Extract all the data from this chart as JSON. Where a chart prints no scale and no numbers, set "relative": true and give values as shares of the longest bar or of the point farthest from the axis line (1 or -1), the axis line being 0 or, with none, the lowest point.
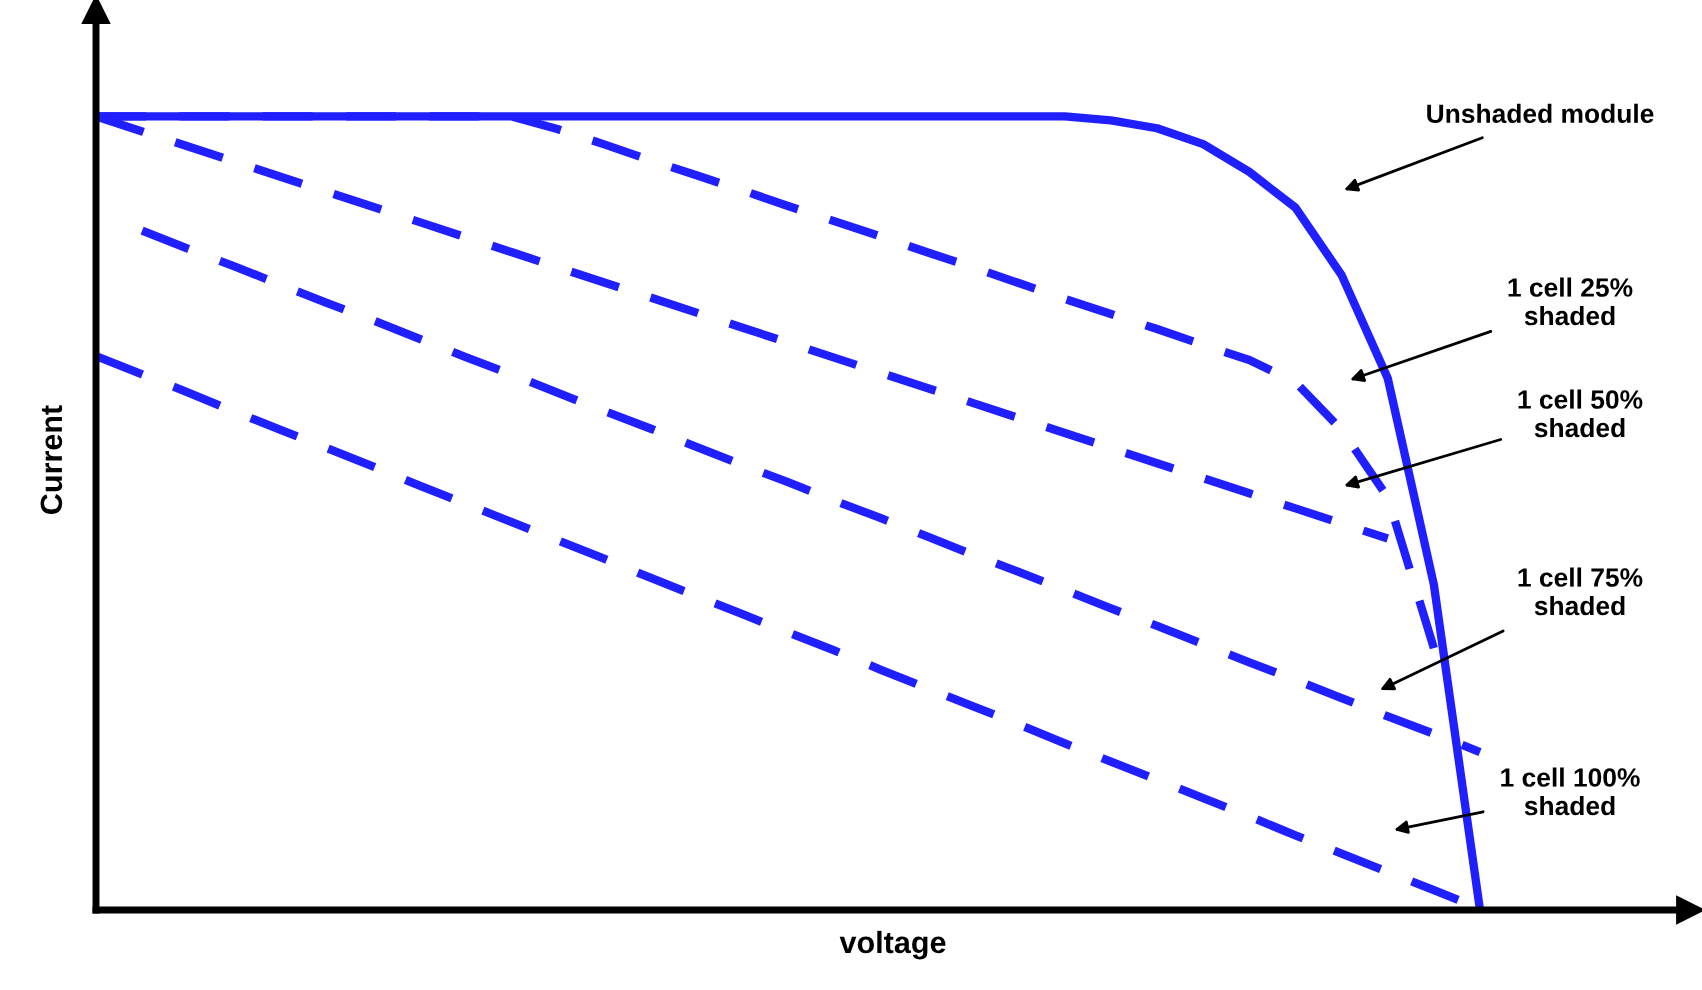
{
  "chart_data": {
    "type": "line",
    "relative": true,
    "xlabel": "voltage",
    "ylabel": "Current",
    "categories": [
      null,
      null,
      null,
      null,
      null,
      null,
      null,
      null,
      null,
      null,
      null,
      null,
      null,
      null,
      null,
      null,
      null,
      null,
      null,
      null,
      null,
      null,
      null,
      null,
      null,
      null,
      null,
      null,
      null,
      null,
      null
    ],
    "series": [
      {
        "color": "#1f1fff",
        "line_style": "solid",
        "values": [
          1,
          1,
          1,
          1,
          1,
          1,
          1,
          1,
          1,
          1,
          1,
          1,
          1,
          1,
          1,
          1,
          1,
          1,
          1,
          1,
          1,
          1,
          0.995,
          0.985,
          0.965,
          0.93,
          0.885,
          0.8,
          0.67,
          0.41,
          0
        ]
      },
      {
        "color": "#1f1fff",
        "line_style": "dashed",
        "values": [
          1,
          1,
          1,
          1,
          1,
          1,
          1,
          1,
          1,
          1,
          0.984,
          0.965,
          0.945,
          0.926,
          0.907,
          0.887,
          0.868,
          0.849,
          0.829,
          0.81,
          0.79,
          0.77,
          0.751,
          0.732,
          0.712,
          0.693,
          0.665,
          0.605,
          0.52,
          0.33,
          null
        ]
      },
      {
        "color": "#1f1fff",
        "line_style": "dashed",
        "values": [
          1,
          0.981,
          0.962,
          0.943,
          0.924,
          0.905,
          0.886,
          0.867,
          0.848,
          0.829,
          0.81,
          0.791,
          0.772,
          0.753,
          0.734,
          0.715,
          0.696,
          0.677,
          0.658,
          0.639,
          0.62,
          0.601,
          0.582,
          0.563,
          0.544,
          0.525,
          0.506,
          0.487,
          0.468,
          null,
          null
        ]
      },
      {
        "color": "#1f1fff",
        "line_style": "dashed",
        "values": [
          null,
          0.856,
          0.833,
          0.811,
          0.788,
          0.765,
          0.743,
          0.72,
          0.697,
          0.675,
          0.652,
          0.629,
          0.607,
          0.584,
          0.561,
          0.539,
          0.516,
          0.494,
          0.471,
          0.448,
          0.426,
          0.403,
          0.38,
          0.358,
          0.335,
          0.312,
          0.29,
          0.267,
          0.244,
          0.222,
          0.199
        ]
      },
      {
        "color": "#1f1fff",
        "line_style": "dashed",
        "values": [
          0.698,
          0.675,
          0.652,
          0.628,
          0.605,
          0.582,
          0.559,
          0.535,
          0.512,
          0.489,
          0.466,
          0.443,
          0.419,
          0.396,
          0.373,
          0.35,
          0.327,
          0.303,
          0.28,
          0.257,
          0.234,
          0.21,
          0.187,
          0.164,
          0.141,
          0.118,
          0.094,
          0.071,
          0.048,
          0.025,
          0.002
        ]
      }
    ],
    "annotations": [
      "Unshaded module",
      "1 cell 25%\nshaded",
      "1 cell 50%\nshaded",
      "1 cell 75%\nshaded",
      "1 cell 100%\nshaded"
    ]
  }
}
